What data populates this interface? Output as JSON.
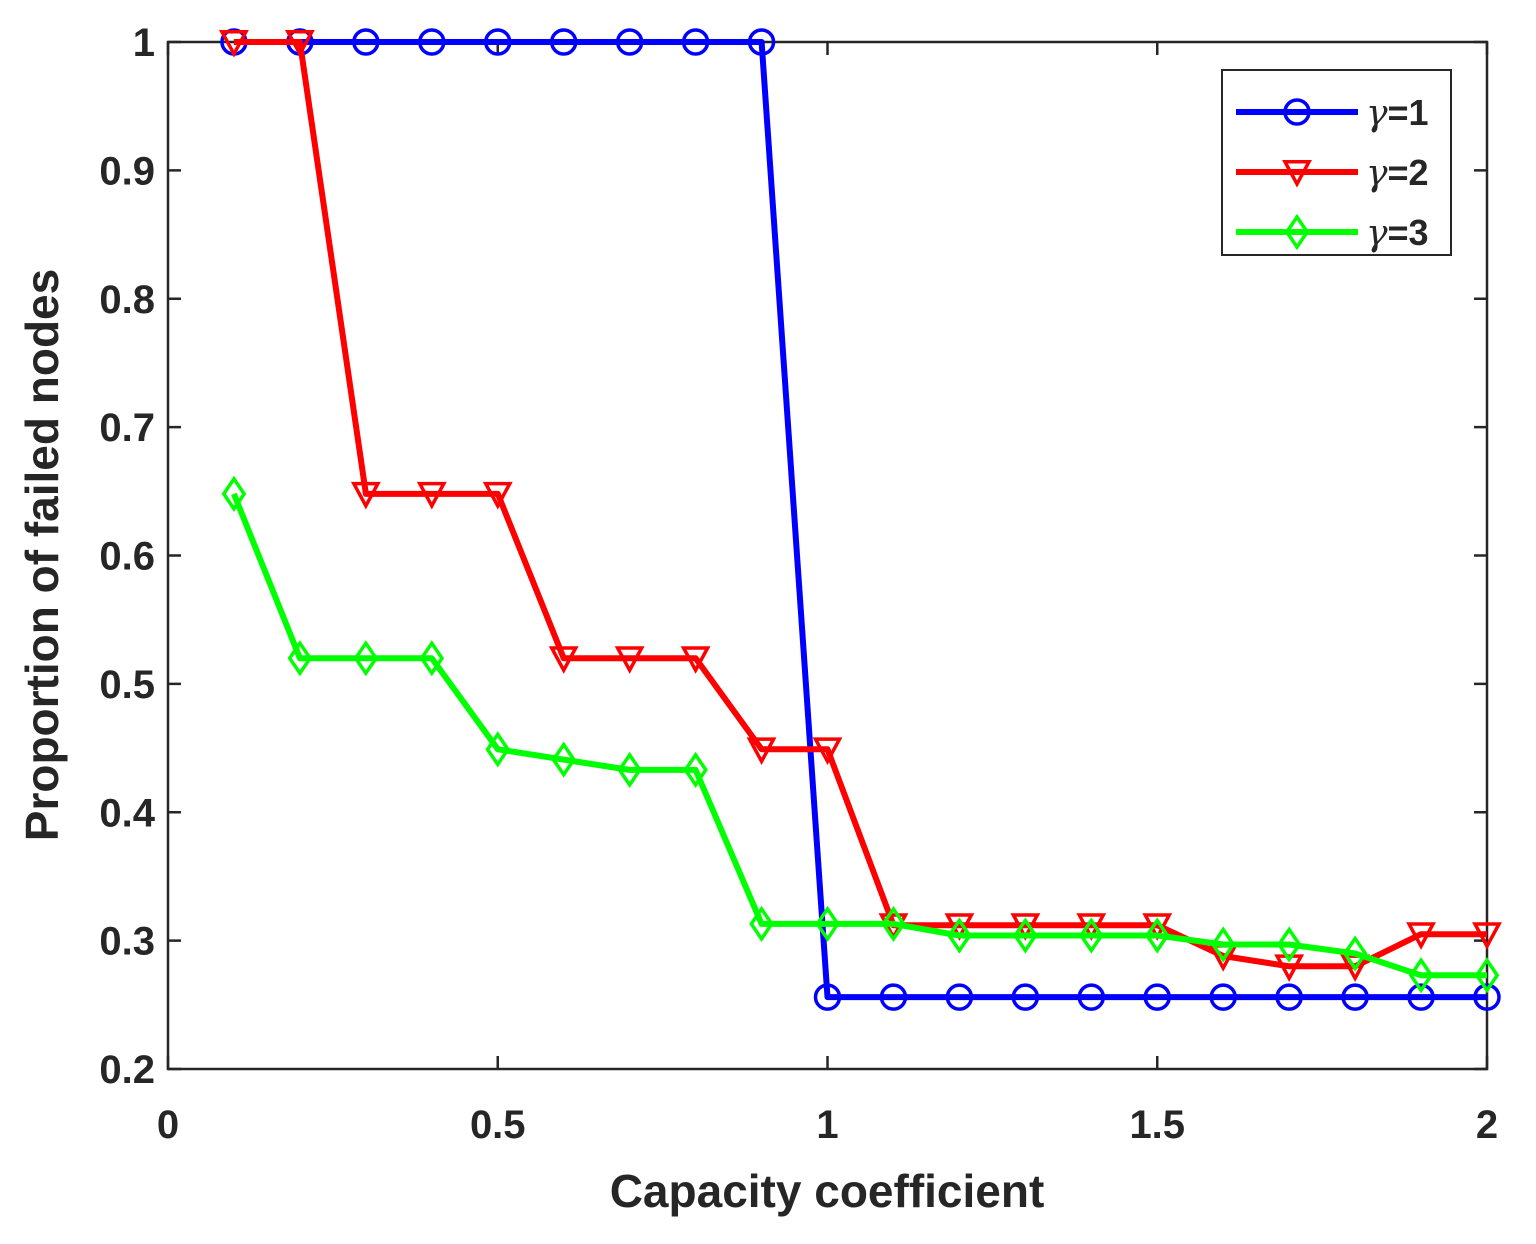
{
  "chart_data": {
    "type": "line",
    "title": "",
    "xlabel": "Capacity coefficient",
    "ylabel": "Proportion of failed nodes",
    "xlim": [
      0,
      2
    ],
    "ylim": [
      0.2,
      1
    ],
    "xticks": [
      0,
      0.5,
      1,
      1.5,
      2
    ],
    "xtick_labels": [
      "0",
      "0.5",
      "1",
      "1.5",
      "2"
    ],
    "yticks": [
      0.2,
      0.3,
      0.4,
      0.5,
      0.6,
      0.7,
      0.8,
      0.9,
      1
    ],
    "ytick_labels": [
      "0.2",
      "0.3",
      "0.4",
      "0.5",
      "0.6",
      "0.7",
      "0.8",
      "0.9",
      "1"
    ],
    "grid": false,
    "legend_position": "top-right",
    "x": [
      0.1,
      0.2,
      0.3,
      0.4,
      0.5,
      0.6,
      0.7,
      0.8,
      0.9,
      1.0,
      1.1,
      1.2,
      1.3,
      1.4,
      1.5,
      1.6,
      1.7,
      1.8,
      1.9,
      2.0
    ],
    "series": [
      {
        "name": "γ=1",
        "legend_prefix": "γ",
        "legend_suffix": "=1",
        "color": "#0000ff",
        "marker": "circle",
        "values": [
          1,
          1,
          1,
          1,
          1,
          1,
          1,
          1,
          1,
          0.256,
          0.256,
          0.256,
          0.256,
          0.256,
          0.256,
          0.256,
          0.256,
          0.256,
          0.256,
          0.256
        ]
      },
      {
        "name": "γ=2",
        "legend_prefix": "γ",
        "legend_suffix": "=2",
        "color": "#ff0000",
        "marker": "triangle-down",
        "values": [
          1,
          1,
          0.648,
          0.648,
          0.648,
          0.52,
          0.52,
          0.52,
          0.449,
          0.449,
          0.312,
          0.312,
          0.312,
          0.312,
          0.312,
          0.288,
          0.28,
          0.28,
          0.305,
          0.305
        ]
      },
      {
        "name": "γ=3",
        "legend_prefix": "γ",
        "legend_suffix": "=3",
        "color": "#00ff00",
        "marker": "diamond",
        "values": [
          0.648,
          0.52,
          0.52,
          0.52,
          0.449,
          0.441,
          0.433,
          0.433,
          0.313,
          0.313,
          0.313,
          0.304,
          0.304,
          0.304,
          0.304,
          0.297,
          0.297,
          0.29,
          0.273,
          0.273
        ]
      }
    ]
  }
}
